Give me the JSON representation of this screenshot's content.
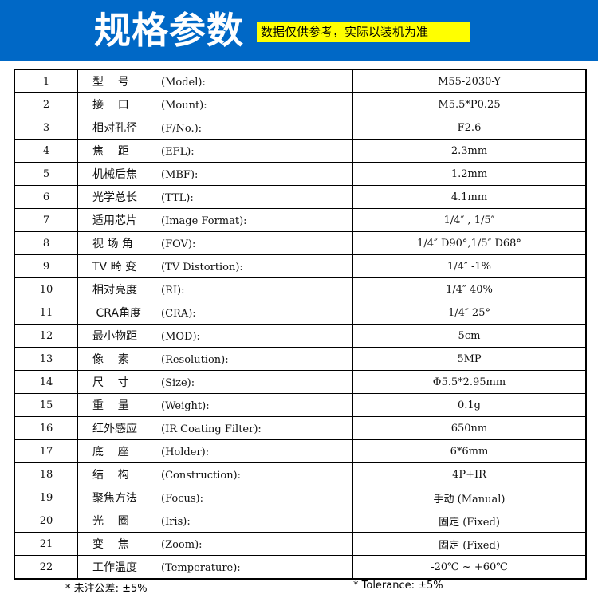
{
  "header": {
    "title": "规格参数",
    "note": "数据仅供参考，实际以装机为准",
    "bg_color": "#0068c6",
    "note_bg": "#ffff00"
  },
  "rows": [
    {
      "no": "1",
      "cn": "型    号",
      "en": "(Model):",
      "value": "M55-2030-Y"
    },
    {
      "no": "2",
      "cn": "接    口",
      "en": "(Mount):",
      "value": "M5.5*P0.25"
    },
    {
      "no": "3",
      "cn": "相对孔径",
      "en": "(F/No.):",
      "value": "F2.6"
    },
    {
      "no": "4",
      "cn": "焦    距",
      "en": "(EFL):",
      "value": "2.3mm"
    },
    {
      "no": "5",
      "cn": "机械后焦",
      "en": "(MBF):",
      "value": "1.2mm"
    },
    {
      "no": "6",
      "cn": "光学总长",
      "en": "(TTL):",
      "value": "4.1mm"
    },
    {
      "no": "7",
      "cn": "适用芯片",
      "en": "(Image Format):",
      "value": "1/4″ , 1/5″"
    },
    {
      "no": "8",
      "cn": "视 场 角",
      "en": "(FOV):",
      "value": "1/4″ D90°,1/5″ D68°"
    },
    {
      "no": "9",
      "cn": "TV 畸 变",
      "en": "(TV Distortion):",
      "value": "1/4″ -1%"
    },
    {
      "no": "10",
      "cn": "相对亮度",
      "en": "(RI):",
      "value": "1/4″ 40%"
    },
    {
      "no": "11",
      "cn": " CRA角度",
      "en": "(CRA):",
      "value": "1/4″ 25°"
    },
    {
      "no": "12",
      "cn": "最小物距",
      "en": "(MOD):",
      "value": "5cm"
    },
    {
      "no": "13",
      "cn": "像    素",
      "en": "(Resolution):",
      "value": "5MP"
    },
    {
      "no": "14",
      "cn": "尺    寸",
      "en": "(Size):",
      "value": "Φ5.5*2.95mm"
    },
    {
      "no": "15",
      "cn": "重    量",
      "en": "(Weight):",
      "value": "0.1g"
    },
    {
      "no": "16",
      "cn": "红外感应",
      "en": "(IR Coating Filter):",
      "value": "650nm"
    },
    {
      "no": "17",
      "cn": "底    座",
      "en": "(Holder):",
      "value": "6*6mm"
    },
    {
      "no": "18",
      "cn": "结    构",
      "en": "(Construction):",
      "value": "4P+IR"
    },
    {
      "no": "19",
      "cn": "聚焦方法",
      "en": "(Focus):",
      "value": "手动 (Manual)"
    },
    {
      "no": "20",
      "cn": "光    圈",
      "en": "(Iris):",
      "value": "固定 (Fixed)"
    },
    {
      "no": "21",
      "cn": "变    焦",
      "en": "(Zoom):",
      "value": "固定 (Fixed)"
    },
    {
      "no": "22",
      "cn": "工作温度",
      "en": "(Temperature):",
      "value": "-20℃ ~ +60℃"
    }
  ],
  "footer": {
    "cn": "* 未注公差: ±5%",
    "en": "* Tolerance: ±5%"
  }
}
